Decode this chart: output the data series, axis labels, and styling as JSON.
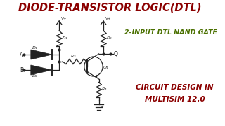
{
  "bg_color": "#ffffff",
  "title_text": "DIODE-TRANSISTOR LOGIC(DTL)",
  "title_color": "#8b0000",
  "subtitle1_text": "2-INPUT DTL NAND GATE",
  "subtitle1_color": "#4a7000",
  "subtitle2_line1": "CIRCUIT DESIGN IN",
  "subtitle2_line2": "MULTISIM 12.0",
  "subtitle2_color": "#8b0000",
  "circuit_color": "#222222",
  "bg_left": "#e8e8e8"
}
